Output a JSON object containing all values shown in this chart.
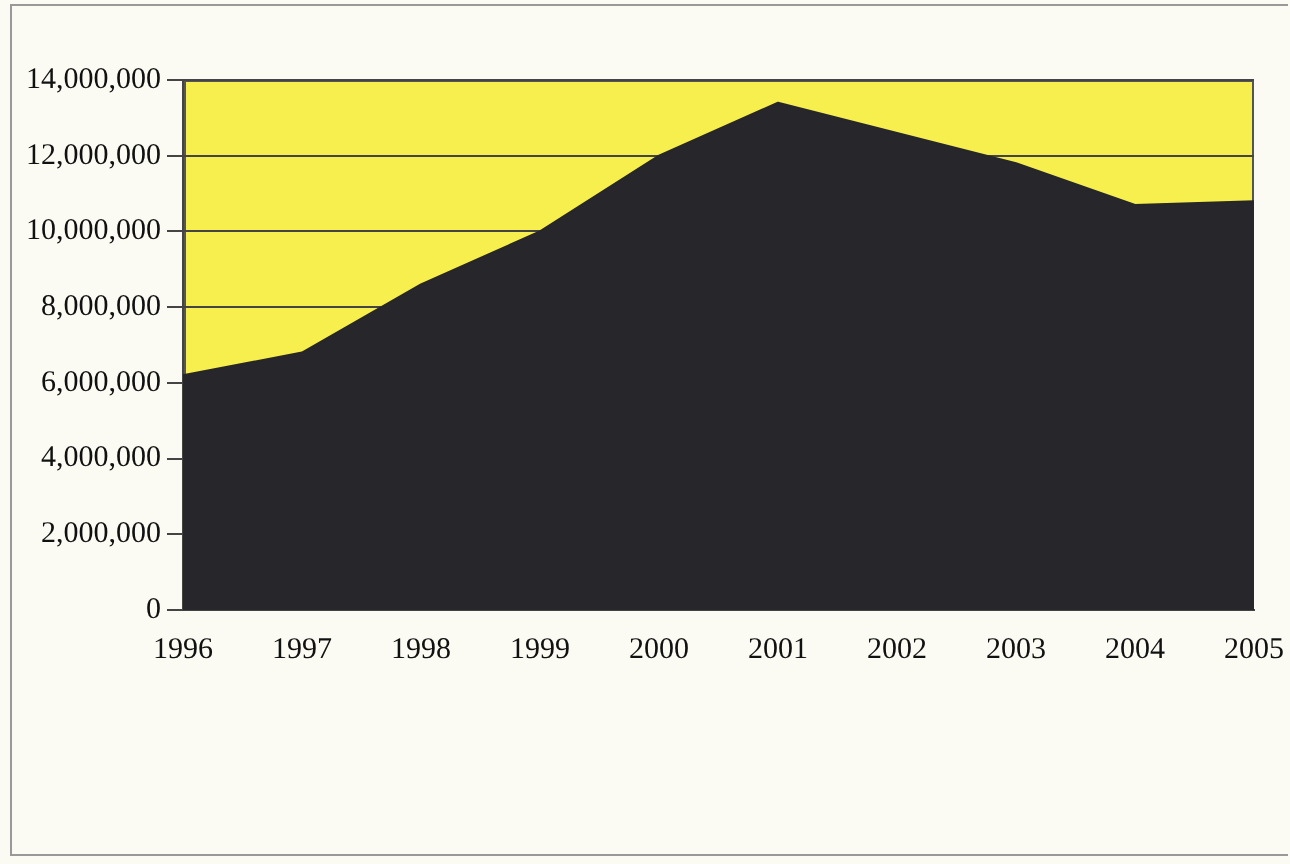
{
  "chart_data": {
    "type": "area",
    "categories": [
      "1996",
      "1997",
      "1998",
      "1999",
      "2000",
      "2001",
      "2002",
      "2003",
      "2004",
      "2005"
    ],
    "series": [
      {
        "color": "#26262b",
        "values": [
          6200000,
          6800000,
          8600000,
          10000000,
          12000000,
          13400000,
          12600000,
          11800000,
          10700000,
          10800000
        ]
      }
    ],
    "ylim": [
      0,
      14000000
    ],
    "yticks": [
      0,
      {
        "value": 2000000,
        "label": "2,000,000"
      },
      {
        "value": 4000000,
        "label": "4,000,000"
      },
      {
        "value": 6000000,
        "label": "6,000,000"
      },
      {
        "value": 8000000,
        "label": "8,000,000"
      },
      {
        "value": 10000000,
        "label": "10,000,000"
      },
      {
        "value": 12000000,
        "label": "12,000,000"
      },
      {
        "value": 14000000,
        "label": "14,000,000"
      }
    ],
    "grid": "y",
    "legend": false
  }
}
